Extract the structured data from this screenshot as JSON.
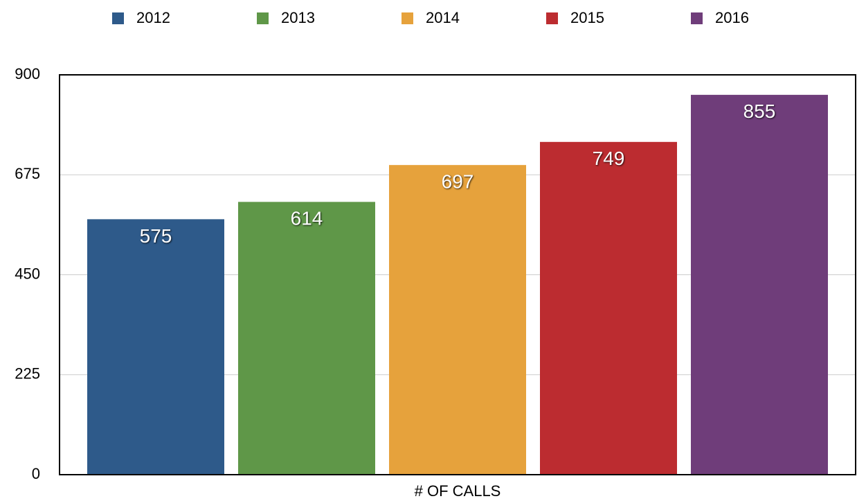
{
  "chart_data": {
    "type": "bar",
    "categories": [
      "# OF CALLS"
    ],
    "series": [
      {
        "name": "2012",
        "color": "#2e5a8a",
        "values": [
          575
        ]
      },
      {
        "name": "2013",
        "color": "#5f9748",
        "values": [
          614
        ]
      },
      {
        "name": "2014",
        "color": "#e6a23c",
        "values": [
          697
        ]
      },
      {
        "name": "2015",
        "color": "#bc2c30",
        "values": [
          749
        ]
      },
      {
        "name": "2016",
        "color": "#6f3d7a",
        "values": [
          855
        ]
      }
    ],
    "ylim": [
      0,
      900
    ],
    "yticks": [
      0,
      225,
      450,
      675,
      900
    ],
    "grid": true,
    "legend": "top"
  }
}
